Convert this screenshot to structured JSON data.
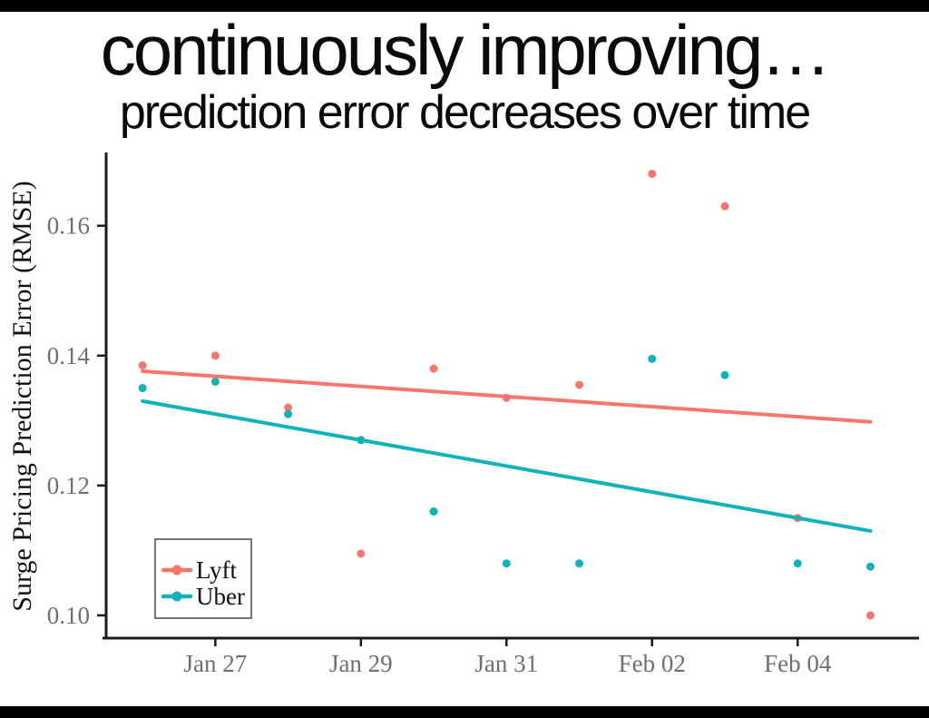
{
  "slide": {
    "title": "continuously improving…",
    "subtitle": "prediction error decreases over time"
  },
  "chart_data": {
    "type": "scatter",
    "title": "",
    "xlabel": "",
    "ylabel": "Surge Pricing Prediction Error (RMSE)",
    "grid": false,
    "legend_position": "bottom-left",
    "axis_color": "#1a1a1a",
    "tick_label_color": "#6f6f6f",
    "legend_border_color": "#4a4a4a",
    "x_dates": [
      "Jan 26",
      "Jan 27",
      "Jan 28",
      "Jan 29",
      "Jan 30",
      "Jan 31",
      "Feb 01",
      "Feb 02",
      "Feb 03",
      "Feb 04",
      "Feb 05"
    ],
    "x_index_range": [
      -0.5,
      10.63
    ],
    "ylim": [
      0.0965,
      0.171
    ],
    "yticks": [
      {
        "value": 0.1,
        "label": "0.10"
      },
      {
        "value": 0.12,
        "label": "0.12"
      },
      {
        "value": 0.14,
        "label": "0.14"
      },
      {
        "value": 0.16,
        "label": "0.16"
      }
    ],
    "xticks": [
      {
        "index": 1,
        "label": "Jan 27"
      },
      {
        "index": 3,
        "label": "Jan 29"
      },
      {
        "index": 5,
        "label": "Jan 31"
      },
      {
        "index": 7,
        "label": "Feb 02"
      },
      {
        "index": 9,
        "label": "Feb 04"
      }
    ],
    "series": [
      {
        "name": "Lyft",
        "color": "#F8766D",
        "values": [
          0.1385,
          0.14,
          0.132,
          0.1095,
          0.138,
          0.1335,
          0.1355,
          0.168,
          0.163,
          0.115,
          0.1
        ],
        "trend": {
          "start": 0.1376,
          "end": 0.1298
        }
      },
      {
        "name": "Uber",
        "color": "#0FB3B9",
        "values": [
          0.135,
          0.136,
          0.131,
          0.127,
          0.116,
          0.108,
          0.108,
          0.1395,
          0.137,
          0.108,
          0.1075
        ],
        "trend": {
          "start": 0.133,
          "end": 0.113
        }
      }
    ]
  }
}
